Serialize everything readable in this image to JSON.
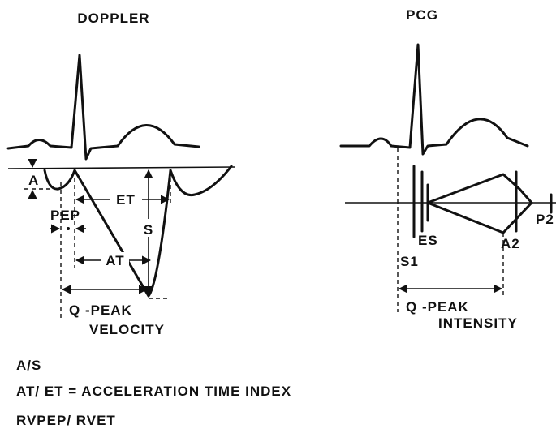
{
  "titles": {
    "doppler": "DOPPLER",
    "pcg": "PCG"
  },
  "doppler_labels": {
    "a": "A",
    "pep": "PEP",
    "et": "ET",
    "at": "AT",
    "s": "S",
    "q_peak": "Q -PEAK",
    "velocity": "VELOCITY"
  },
  "pcg_labels": {
    "s1": "S1",
    "es": "ES",
    "a2": "A2",
    "p2": "P2",
    "q_peak": "Q -PEAK",
    "intensity": "INTENSITY"
  },
  "formulas": [
    "A/S",
    "AT/ ET = ACCELERATION TIME INDEX",
    "RVPEP/ RVET"
  ]
}
